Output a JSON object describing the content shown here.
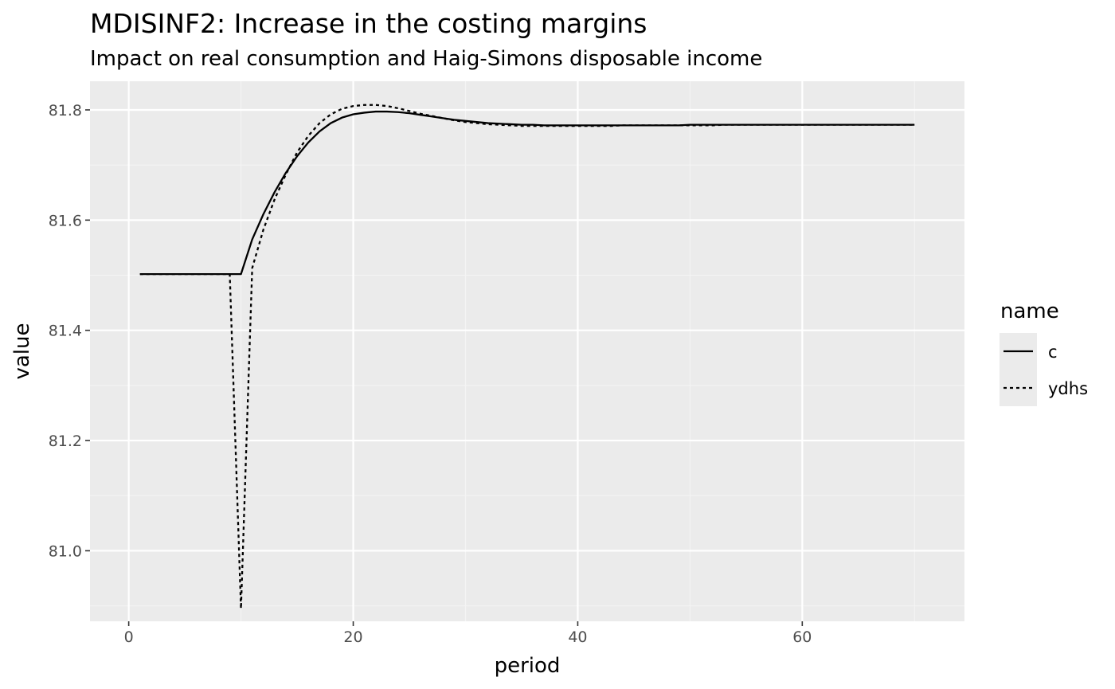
{
  "chart_data": {
    "type": "line",
    "title": "MDISINF2: Increase in the costing margins",
    "subtitle": "Impact on real consumption and Haig-Simons disposable income",
    "xlabel": "period",
    "ylabel": "value",
    "xlim": [
      -3.45,
      74.45
    ],
    "ylim": [
      80.872,
      81.852
    ],
    "x_ticks": [
      0,
      20,
      40,
      60
    ],
    "x_tick_labels": [
      "0",
      "20",
      "40",
      "60"
    ],
    "y_ticks": [
      81.0,
      81.2,
      81.4,
      81.6,
      81.8
    ],
    "y_tick_labels": [
      "81.0",
      "81.2",
      "81.4",
      "81.6",
      "81.8"
    ],
    "grid": true,
    "legend": {
      "title": "name",
      "placement": "right"
    },
    "series": [
      {
        "name": "c",
        "linetype": "solid",
        "color": "#000000",
        "x": [
          1,
          2,
          3,
          4,
          5,
          6,
          7,
          8,
          9,
          10,
          11,
          12,
          13,
          14,
          15,
          16,
          17,
          18,
          19,
          20,
          21,
          22,
          23,
          24,
          25,
          26,
          27,
          28,
          29,
          30,
          31,
          32,
          33,
          34,
          35,
          36,
          37,
          38,
          39,
          40,
          41,
          42,
          43,
          44,
          45,
          46,
          47,
          48,
          49,
          50,
          51,
          52,
          53,
          54,
          55,
          56,
          57,
          58,
          59,
          60,
          61,
          62,
          63,
          64,
          65,
          66,
          67,
          68,
          69,
          70
        ],
        "y": [
          81.502,
          81.502,
          81.502,
          81.502,
          81.502,
          81.502,
          81.502,
          81.502,
          81.502,
          81.502,
          81.565,
          81.611,
          81.651,
          81.686,
          81.716,
          81.741,
          81.761,
          81.776,
          81.786,
          81.792,
          81.795,
          81.797,
          81.797,
          81.796,
          81.794,
          81.791,
          81.788,
          81.785,
          81.782,
          81.78,
          81.778,
          81.776,
          81.775,
          81.774,
          81.773,
          81.773,
          81.772,
          81.772,
          81.772,
          81.772,
          81.772,
          81.772,
          81.772,
          81.772,
          81.772,
          81.772,
          81.772,
          81.772,
          81.772,
          81.773,
          81.773,
          81.773,
          81.773,
          81.773,
          81.773,
          81.773,
          81.773,
          81.773,
          81.773,
          81.773,
          81.773,
          81.773,
          81.773,
          81.773,
          81.773,
          81.773,
          81.773,
          81.773,
          81.773,
          81.773
        ]
      },
      {
        "name": "ydhs",
        "linetype": "dotted",
        "color": "#000000",
        "x": [
          1,
          2,
          3,
          4,
          5,
          6,
          7,
          8,
          9,
          10,
          11,
          12,
          13,
          14,
          15,
          16,
          17,
          18,
          19,
          20,
          21,
          22,
          23,
          24,
          25,
          26,
          27,
          28,
          29,
          30,
          31,
          32,
          33,
          34,
          35,
          36,
          37,
          38,
          39,
          40,
          41,
          42,
          43,
          44,
          45,
          46,
          47,
          48,
          49,
          50,
          51,
          52,
          53,
          54,
          55,
          56,
          57,
          58,
          59,
          60,
          61,
          62,
          63,
          64,
          65,
          66,
          67,
          68,
          69,
          70
        ],
        "y": [
          81.502,
          81.502,
          81.502,
          81.502,
          81.502,
          81.502,
          81.502,
          81.502,
          81.502,
          80.895,
          81.513,
          81.583,
          81.638,
          81.683,
          81.723,
          81.753,
          81.776,
          81.792,
          81.802,
          81.807,
          81.809,
          81.809,
          81.807,
          81.803,
          81.798,
          81.793,
          81.789,
          81.785,
          81.781,
          81.778,
          81.776,
          81.774,
          81.773,
          81.772,
          81.771,
          81.771,
          81.771,
          81.771,
          81.771,
          81.771,
          81.771,
          81.771,
          81.771,
          81.772,
          81.772,
          81.772,
          81.772,
          81.772,
          81.772,
          81.772,
          81.772,
          81.772,
          81.773,
          81.773,
          81.773,
          81.773,
          81.773,
          81.773,
          81.773,
          81.773,
          81.773,
          81.773,
          81.773,
          81.773,
          81.773,
          81.773,
          81.773,
          81.773,
          81.773,
          81.773
        ]
      }
    ]
  },
  "colors": {
    "panel_background": "#ebebeb",
    "grid_major": "#ffffff",
    "grid_minor": "#f4f4f4",
    "tick": "#333333",
    "line": "#000000"
  }
}
